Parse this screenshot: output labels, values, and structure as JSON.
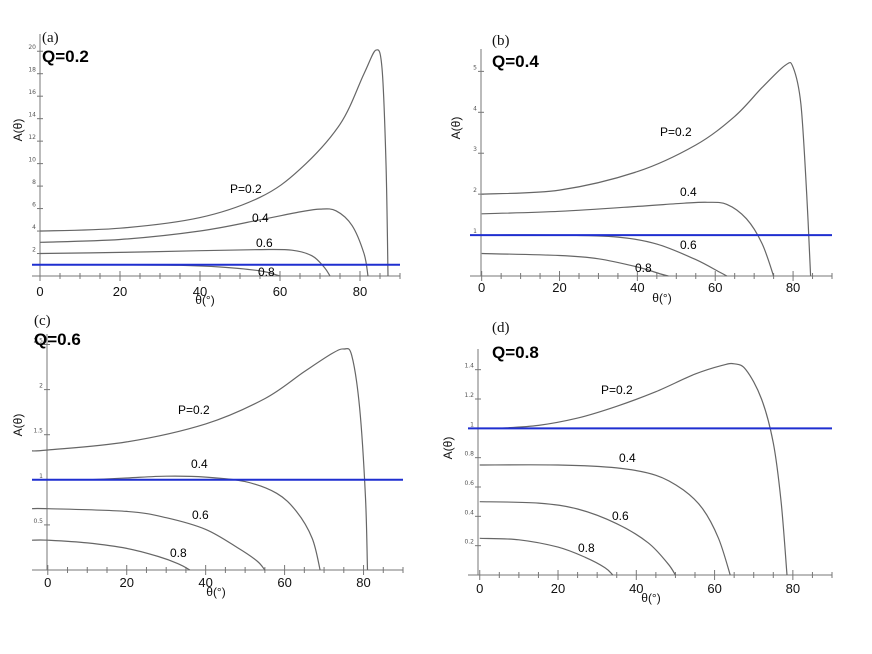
{
  "chart_data": [
    {
      "type": "line",
      "panel": "(a)",
      "title": "Q=0.2",
      "xlabel": "θ(°)",
      "ylabel": "A(θ)",
      "xlim": [
        -2,
        90
      ],
      "ylim": [
        0,
        21
      ],
      "xticks": [
        "0",
        "20",
        "40",
        "60",
        "80"
      ],
      "yticks": [
        "2",
        "4",
        "6",
        "8",
        "10",
        "12",
        "14",
        "16",
        "18",
        "20"
      ],
      "reference_line": {
        "y": 1,
        "color": "#1f2fd0"
      },
      "series": [
        {
          "name": "P=0.2",
          "label": "P=0.2",
          "points": [
            [
              0,
              4.0
            ],
            [
              20,
              4.25
            ],
            [
              40,
              5.2
            ],
            [
              55,
              7.0
            ],
            [
              65,
              9.5
            ],
            [
              75,
              13.5
            ],
            [
              81,
              18.0
            ],
            [
              84,
              20.1
            ],
            [
              85.5,
              18.5
            ],
            [
              86.5,
              10
            ],
            [
              87,
              0
            ]
          ]
        },
        {
          "name": "P=0.4",
          "label": "0.4",
          "points": [
            [
              0,
              3.0
            ],
            [
              20,
              3.25
            ],
            [
              40,
              4.0
            ],
            [
              55,
              5.0
            ],
            [
              65,
              5.7
            ],
            [
              70,
              5.95
            ],
            [
              74,
              5.8
            ],
            [
              78,
              4.5
            ],
            [
              81,
              2.0
            ],
            [
              82,
              0
            ]
          ]
        },
        {
          "name": "P=0.6",
          "label": "0.6",
          "points": [
            [
              0,
              2.0
            ],
            [
              20,
              2.1
            ],
            [
              40,
              2.25
            ],
            [
              55,
              2.35
            ],
            [
              63,
              2.3
            ],
            [
              68,
              1.8
            ],
            [
              71,
              0.8
            ],
            [
              72.5,
              0
            ]
          ]
        },
        {
          "name": "P=0.8",
          "label": "0.8",
          "points": [
            [
              0,
              1.0
            ],
            [
              20,
              1.0
            ],
            [
              35,
              0.95
            ],
            [
              45,
              0.8
            ],
            [
              55,
              0.45
            ],
            [
              60,
              0
            ]
          ]
        }
      ]
    },
    {
      "type": "line",
      "panel": "(b)",
      "title": "Q=0.4",
      "xlabel": "θ(°)",
      "ylabel": "A(θ)",
      "xlim": [
        -3,
        90
      ],
      "ylim": [
        0,
        5.4
      ],
      "xticks": [
        "0",
        "20",
        "40",
        "60",
        "80"
      ],
      "yticks": [
        "1",
        "2",
        "3",
        "4",
        "5"
      ],
      "reference_line": {
        "y": 1,
        "color": "#1f2fd0"
      },
      "series": [
        {
          "name": "P=0.2",
          "label": "P=0.2",
          "points": [
            [
              0,
              2.0
            ],
            [
              20,
              2.1
            ],
            [
              40,
              2.55
            ],
            [
              55,
              3.2
            ],
            [
              65,
              3.9
            ],
            [
              72,
              4.6
            ],
            [
              78,
              5.15
            ],
            [
              80,
              5.1
            ],
            [
              82,
              4.2
            ],
            [
              83.5,
              2.0
            ],
            [
              84.5,
              0
            ]
          ]
        },
        {
          "name": "P=0.4",
          "label": "0.4",
          "points": [
            [
              0,
              1.52
            ],
            [
              20,
              1.58
            ],
            [
              40,
              1.7
            ],
            [
              52,
              1.78
            ],
            [
              58,
              1.8
            ],
            [
              63,
              1.75
            ],
            [
              68,
              1.4
            ],
            [
              72,
              0.8
            ],
            [
              75,
              0
            ]
          ]
        },
        {
          "name": "P=0.6",
          "label": "0.6",
          "points": [
            [
              0,
              1.0
            ],
            [
              20,
              1.0
            ],
            [
              35,
              0.95
            ],
            [
              45,
              0.78
            ],
            [
              55,
              0.4
            ],
            [
              61,
              0.1
            ],
            [
              63,
              0
            ]
          ]
        },
        {
          "name": "P=0.8",
          "label": "0.8",
          "points": [
            [
              0,
              0.55
            ],
            [
              20,
              0.5
            ],
            [
              30,
              0.42
            ],
            [
              40,
              0.22
            ],
            [
              46,
              0.05
            ],
            [
              48,
              0
            ]
          ]
        }
      ]
    },
    {
      "type": "line",
      "panel": "(c)",
      "title": "Q=0.6",
      "xlabel": "θ(°)",
      "ylabel": "A(θ)",
      "xlim": [
        -4,
        90
      ],
      "ylim": [
        0,
        2.55
      ],
      "xticks": [
        "0",
        "20",
        "40",
        "60",
        "80"
      ],
      "yticks": [
        "0.5",
        "1",
        "1.5",
        "2",
        "2.5"
      ],
      "reference_line": {
        "y": 1,
        "color": "#1f2fd0"
      },
      "series": [
        {
          "name": "P=0.2",
          "label": "P=0.2",
          "points": [
            [
              -4,
              1.32
            ],
            [
              0,
              1.33
            ],
            [
              20,
              1.42
            ],
            [
              40,
              1.62
            ],
            [
              55,
              1.9
            ],
            [
              65,
              2.2
            ],
            [
              72,
              2.4
            ],
            [
              75,
              2.45
            ],
            [
              77,
              2.38
            ],
            [
              79,
              1.8
            ],
            [
              80.5,
              0.8
            ],
            [
              81,
              0
            ]
          ]
        },
        {
          "name": "P=0.4",
          "label": "0.4",
          "points": [
            [
              10,
              1.0
            ],
            [
              20,
              1.02
            ],
            [
              30,
              1.04
            ],
            [
              40,
              1.03
            ],
            [
              50,
              0.98
            ],
            [
              58,
              0.85
            ],
            [
              63,
              0.65
            ],
            [
              67,
              0.35
            ],
            [
              69,
              0
            ]
          ]
        },
        {
          "name": "P=0.6",
          "label": "0.6",
          "points": [
            [
              -4,
              0.68
            ],
            [
              0,
              0.68
            ],
            [
              20,
              0.65
            ],
            [
              30,
              0.58
            ],
            [
              40,
              0.45
            ],
            [
              48,
              0.25
            ],
            [
              53,
              0.1
            ],
            [
              55,
              0
            ]
          ]
        },
        {
          "name": "P=0.8",
          "label": "0.8",
          "points": [
            [
              -4,
              0.33
            ],
            [
              0,
              0.33
            ],
            [
              10,
              0.3
            ],
            [
              20,
              0.24
            ],
            [
              28,
              0.15
            ],
            [
              33,
              0.07
            ],
            [
              36,
              0
            ]
          ]
        }
      ]
    },
    {
      "type": "line",
      "panel": "(d)",
      "title": "Q=0.8",
      "xlabel": "θ(°)",
      "ylabel": "A(θ)",
      "xlim": [
        -3,
        90
      ],
      "ylim": [
        0,
        1.5
      ],
      "xticks": [
        "0",
        "20",
        "40",
        "60",
        "80"
      ],
      "yticks": [
        "0.2",
        "0.4",
        "0.6",
        "0.8",
        "1",
        "1.2",
        "1.4"
      ],
      "reference_line": {
        "y": 1,
        "color": "#1f2fd0"
      },
      "series": [
        {
          "name": "P=0.2",
          "label": "P=0.2",
          "points": [
            [
              5,
              1.0
            ],
            [
              15,
              1.02
            ],
            [
              25,
              1.07
            ],
            [
              35,
              1.15
            ],
            [
              45,
              1.25
            ],
            [
              55,
              1.37
            ],
            [
              62,
              1.43
            ],
            [
              65,
              1.44
            ],
            [
              68,
              1.4
            ],
            [
              72,
              1.2
            ],
            [
              75,
              0.9
            ],
            [
              77,
              0.5
            ],
            [
              78.5,
              0
            ]
          ]
        },
        {
          "name": "P=0.4",
          "label": "0.4",
          "points": [
            [
              0,
              0.75
            ],
            [
              20,
              0.75
            ],
            [
              35,
              0.73
            ],
            [
              45,
              0.68
            ],
            [
              52,
              0.58
            ],
            [
              57,
              0.45
            ],
            [
              61,
              0.25
            ],
            [
              64,
              0
            ]
          ]
        },
        {
          "name": "P=0.6",
          "label": "0.6",
          "points": [
            [
              0,
              0.5
            ],
            [
              15,
              0.49
            ],
            [
              25,
              0.45
            ],
            [
              35,
              0.35
            ],
            [
              43,
              0.22
            ],
            [
              48,
              0.08
            ],
            [
              50,
              0
            ]
          ]
        },
        {
          "name": "P=0.8",
          "label": "0.8",
          "points": [
            [
              0,
              0.25
            ],
            [
              10,
              0.24
            ],
            [
              20,
              0.19
            ],
            [
              27,
              0.12
            ],
            [
              32,
              0.05
            ],
            [
              34,
              0
            ]
          ]
        }
      ]
    }
  ]
}
